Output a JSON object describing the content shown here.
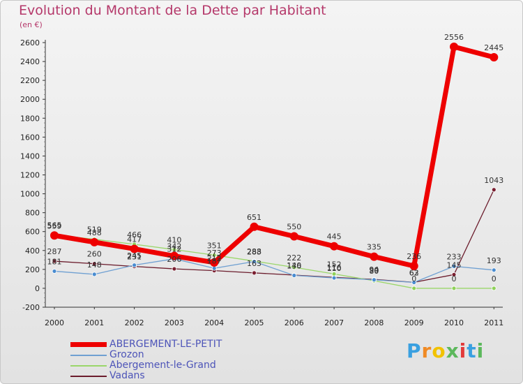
{
  "chart_data": {
    "type": "line",
    "title": "Evolution du Montant de la Dette par Habitant",
    "unit": "(en €)",
    "categories": [
      "2000",
      "2001",
      "2002",
      "2003",
      "2004",
      "2005",
      "2006",
      "2007",
      "2008",
      "2009",
      "2010",
      "2011"
    ],
    "ylim": [
      -200,
      2600
    ],
    "yticks": [
      -200,
      0,
      200,
      400,
      600,
      800,
      1000,
      1200,
      1400,
      1600,
      1800,
      2000,
      2200,
      2400,
      2600
    ],
    "grid": false,
    "legend_position": "bottom-left",
    "series": [
      {
        "name": "Vadans",
        "color": "#6b1c2c",
        "marker": "#7a1f30",
        "width": 1.3,
        "r": 3,
        "values": [
          287,
          260,
          231,
          206,
          187,
          163,
          140,
          116,
          94,
          63,
          145,
          1043
        ],
        "labels": [
          "287",
          "260",
          "231",
          "206",
          "187",
          "163",
          "140",
          "116",
          "94",
          "63",
          "145",
          "1043"
        ]
      },
      {
        "name": "Abergement-le-Grand",
        "color": "#9ad66a",
        "marker": "#8fd05a",
        "width": 1.3,
        "r": 3,
        "values": [
          565,
          519,
          466,
          410,
          351,
          288,
          222,
          152,
          80,
          0,
          0,
          0
        ],
        "labels": [
          "565",
          "519",
          "466",
          "410",
          "351",
          "288",
          "222",
          "152",
          "80",
          "0",
          "0",
          "0"
        ]
      },
      {
        "name": "Grozon",
        "color": "#6fa0d2",
        "marker": "#4a8cd0",
        "width": 1.3,
        "r": 3,
        "values": [
          181,
          148,
          245,
          312,
          212,
          283,
          136,
          110,
          90,
          62,
          233,
          193
        ],
        "labels": [
          "181",
          "148",
          "245",
          "312",
          "212",
          "283",
          "136",
          "110",
          "90",
          "62",
          "233",
          "193"
        ]
      },
      {
        "name": "ABERGEMENT-LE-PETIT",
        "color": "#ee0000",
        "marker": "#ee0000",
        "width": 7,
        "r": 6,
        "values": [
          559,
          488,
          417,
          342,
          273,
          651,
          550,
          445,
          335,
          236,
          2556,
          2445
        ],
        "labels": [
          "559",
          "488",
          "417",
          "342",
          "273",
          "651",
          "550",
          "445",
          "335",
          "236",
          "2556",
          "2445"
        ]
      }
    ],
    "legend": [
      {
        "name": "ABERGEMENT-LE-PETIT",
        "color": "#ee0000",
        "thickness": 7
      },
      {
        "name": "Grozon",
        "color": "#6fa0d2",
        "thickness": 2
      },
      {
        "name": "Abergement-le-Grand",
        "color": "#9ad66a",
        "thickness": 2
      },
      {
        "name": "Vadans",
        "color": "#6b1c2c",
        "thickness": 2
      }
    ]
  },
  "brand": {
    "text": "Proxiti",
    "letter_colors": [
      "#3aa0e0",
      "#f08a24",
      "#f2c200",
      "#5cb85c",
      "#e23a3a",
      "#3aa0e0",
      "#5cb85c"
    ]
  }
}
